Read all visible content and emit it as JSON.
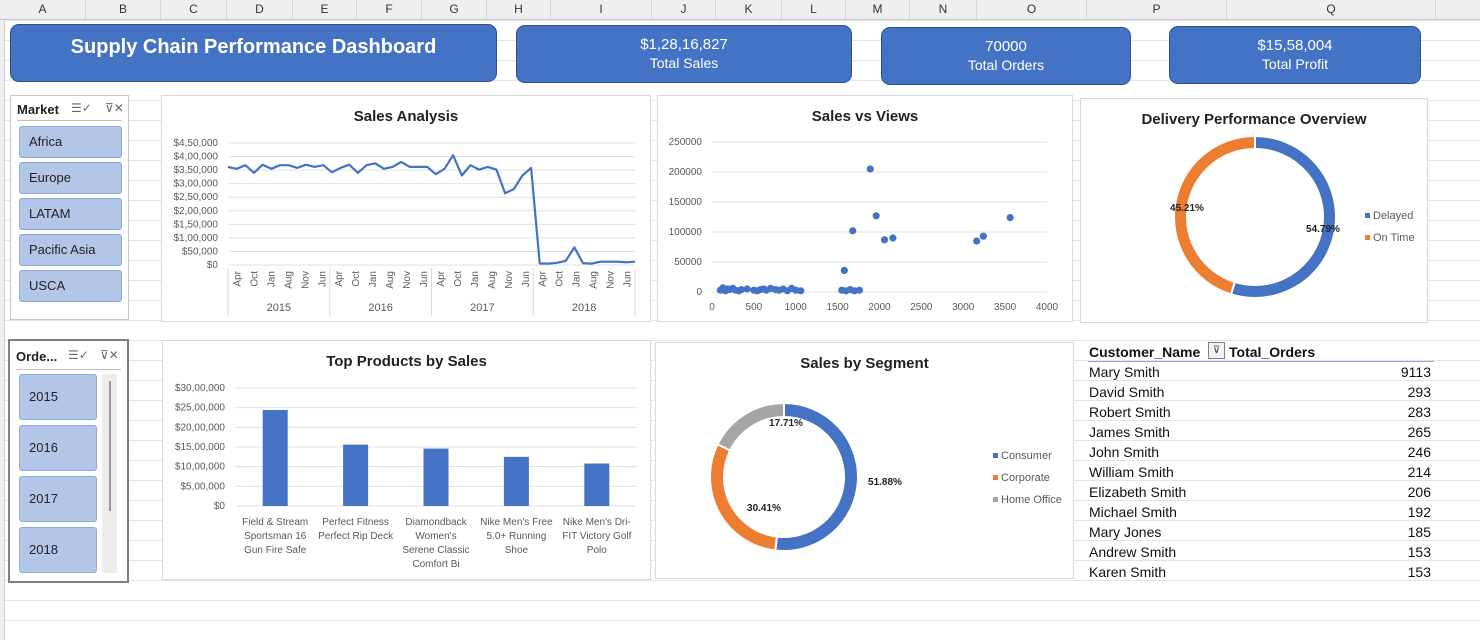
{
  "columns": [
    "A",
    "B",
    "C",
    "D",
    "E",
    "F",
    "G",
    "H",
    "I",
    "J",
    "K",
    "L",
    "M",
    "N",
    "O",
    "P",
    "Q"
  ],
  "header": {
    "title": "Supply Chain Performance Dashboard"
  },
  "kpis": [
    {
      "value": "$1,28,16,827",
      "label": "Total Sales"
    },
    {
      "value": "70000",
      "label": "Total Orders"
    },
    {
      "value": "$15,58,004",
      "label": "Total Profit"
    }
  ],
  "market_slicer": {
    "title": "Market",
    "items": [
      "Africa",
      "Europe",
      "LATAM",
      "Pacific Asia",
      "USCA"
    ]
  },
  "order_slicer": {
    "title": "Orde...",
    "items": [
      "2015",
      "2016",
      "2017",
      "2018"
    ]
  },
  "icons": {
    "multi_select": "multi-select-icon",
    "clear_filter": "clear-filter-icon",
    "sort_filter": "sort-filter-icon"
  },
  "colors": {
    "blue": "#4472c4",
    "orange": "#ed7d31",
    "gray": "#a5a5a5"
  },
  "chart_data": [
    {
      "id": "sales_analysis",
      "type": "line",
      "title": "Sales Analysis",
      "ylim": [
        0,
        450000
      ],
      "yticks": [
        "$0",
        "$50,000",
        "$1,00,000",
        "$1,50,000",
        "$2,00,000",
        "$2,50,000",
        "$3,00,000",
        "$3,50,000",
        "$4,00,000",
        "$4,50,000"
      ],
      "x_labels": [
        "Apr",
        "Oct",
        "Jan",
        "Aug",
        "Nov",
        "Jun",
        "Apr",
        "Oct",
        "Jan",
        "Aug",
        "Nov",
        "Jun",
        "Apr",
        "Oct",
        "Jan",
        "Aug",
        "Nov",
        "Jun",
        "Apr",
        "Oct",
        "Jan",
        "Aug",
        "Nov",
        "Jun"
      ],
      "years": [
        "2015",
        "2016",
        "2017",
        "2018"
      ],
      "values": [
        362000,
        355000,
        368000,
        340000,
        370000,
        355000,
        368000,
        368000,
        358000,
        370000,
        362000,
        368000,
        342000,
        358000,
        370000,
        340000,
        368000,
        375000,
        355000,
        362000,
        380000,
        362000,
        362000,
        362000,
        335000,
        355000,
        405000,
        330000,
        368000,
        352000,
        362000,
        352000,
        265000,
        280000,
        330000,
        358000,
        6000,
        5000,
        8000,
        15000,
        65000,
        7000,
        5000,
        12000,
        12000,
        12000,
        10000,
        12000
      ],
      "color": "#4472c4"
    },
    {
      "id": "sales_vs_views",
      "type": "scatter",
      "title": "Sales vs Views",
      "xlim": [
        0,
        4000
      ],
      "ylim": [
        0,
        250000
      ],
      "xticks": [
        0,
        500,
        1000,
        1500,
        2000,
        2500,
        3000,
        3500,
        4000
      ],
      "yticks": [
        0,
        50000,
        100000,
        150000,
        200000,
        250000
      ],
      "x": [
        100,
        130,
        160,
        190,
        210,
        250,
        280,
        320,
        350,
        420,
        500,
        540,
        580,
        620,
        650,
        700,
        760,
        800,
        850,
        900,
        950,
        1000,
        1060,
        1550,
        1600,
        1650,
        1700,
        1760,
        1580,
        1680,
        1890,
        1960,
        2060,
        2160,
        3160,
        3240,
        3560
      ],
      "y": [
        3000,
        7000,
        2000,
        5000,
        4000,
        6000,
        3000,
        2000,
        4000,
        5000,
        3000,
        2000,
        4000,
        5000,
        3000,
        6000,
        4000,
        3000,
        5000,
        2000,
        6000,
        3000,
        2000,
        3000,
        2000,
        4000,
        2000,
        3000,
        36000,
        102000,
        205000,
        127000,
        87000,
        90000,
        85000,
        93000,
        124000
      ],
      "color": "#4472c4"
    },
    {
      "id": "delivery_performance",
      "type": "pie",
      "title": "Delivery Performance Overview",
      "labels": [
        "Delayed",
        "On Time"
      ],
      "values": [
        54.79,
        45.21
      ],
      "data_labels": [
        "54.79%",
        "45.21%"
      ],
      "colors": [
        "#4472c4",
        "#ed7d31"
      ],
      "legend": "right"
    },
    {
      "id": "top_products",
      "type": "bar",
      "title": "Top Products by Sales",
      "ylim": [
        0,
        3000000
      ],
      "yticks": [
        "$0",
        "$5,00,000",
        "$10,00,000",
        "$15,00,000",
        "$20,00,000",
        "$25,00,000",
        "$30,00,000"
      ],
      "categories": [
        [
          "Field & Stream",
          "Sportsman 16",
          "Gun Fire Safe"
        ],
        [
          "Perfect Fitness",
          "Perfect Rip Deck"
        ],
        [
          "Diamondback",
          "Women's",
          "Serene Classic",
          "Comfort Bi"
        ],
        [
          "Nike Men's Free",
          "5.0+ Running",
          "Shoe"
        ],
        [
          "Nike Men's Dri-",
          "FIT Victory Golf",
          "Polo"
        ]
      ],
      "values": [
        2440000,
        1560000,
        1460000,
        1250000,
        1080000
      ],
      "color": "#4472c4"
    },
    {
      "id": "sales_by_segment",
      "type": "pie",
      "title": "Sales by Segment",
      "labels": [
        "Consumer",
        "Corporate",
        "Home Office"
      ],
      "values": [
        51.88,
        30.41,
        17.71
      ],
      "data_labels": [
        "51.88%",
        "30.41%",
        "17.71%"
      ],
      "colors": [
        "#4472c4",
        "#ed7d31",
        "#a5a5a5"
      ],
      "legend": "right"
    }
  ],
  "customer_table": {
    "headers": [
      "Customer_Name",
      "Total_Orders"
    ],
    "rows": [
      [
        "Mary Smith",
        "9113"
      ],
      [
        "David Smith",
        "293"
      ],
      [
        "Robert Smith",
        "283"
      ],
      [
        "James Smith",
        "265"
      ],
      [
        "John Smith",
        "246"
      ],
      [
        "William Smith",
        "214"
      ],
      [
        "Elizabeth Smith",
        "206"
      ],
      [
        "Michael Smith",
        "192"
      ],
      [
        "Mary Jones",
        "185"
      ],
      [
        "Andrew Smith",
        "153"
      ],
      [
        "Karen Smith",
        "153"
      ]
    ]
  }
}
